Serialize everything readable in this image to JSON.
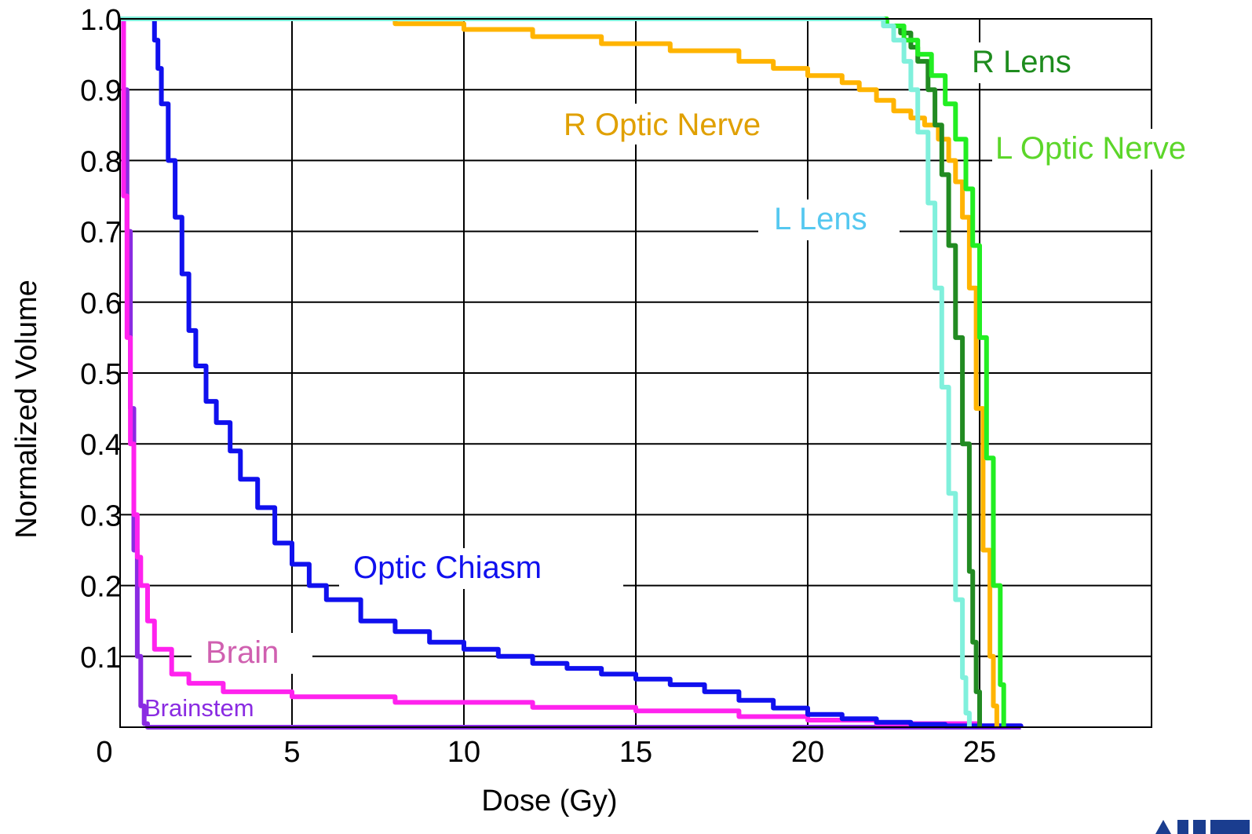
{
  "chart_data": {
    "type": "line",
    "title": "",
    "xlabel": "Dose (Gy)",
    "ylabel": "Normalized Volume",
    "xlim": [
      0,
      30
    ],
    "ylim": [
      0,
      1.0
    ],
    "x_ticks": [
      "0",
      "5",
      "10",
      "15",
      "20",
      "25"
    ],
    "y_ticks": [
      "0.1",
      "0.2",
      "0.3",
      "0.4",
      "0.5",
      "0.6",
      "0.7",
      "0.8",
      "0.9",
      "1.0"
    ],
    "grid": true,
    "legend": "inline labels",
    "series": [
      {
        "name": "Brainstem",
        "color": "#8a2be2",
        "x": [
          0,
          0.1,
          0.2,
          0.3,
          0.4,
          0.5,
          0.6,
          0.7,
          0.8,
          26.2
        ],
        "y": [
          1.0,
          0.9,
          0.7,
          0.45,
          0.25,
          0.1,
          0.03,
          0.005,
          0,
          0
        ]
      },
      {
        "name": "Brain",
        "color": "#ff22ee",
        "x": [
          0,
          0.1,
          0.2,
          0.3,
          0.4,
          0.5,
          0.6,
          0.8,
          1.0,
          1.5,
          2.0,
          3.0,
          5.0,
          8.0,
          12.0,
          15.0,
          18.0,
          20.0,
          22.0,
          25.0,
          26.2
        ],
        "y": [
          1.0,
          0.75,
          0.55,
          0.4,
          0.3,
          0.24,
          0.2,
          0.15,
          0.11,
          0.075,
          0.062,
          0.05,
          0.043,
          0.035,
          0.028,
          0.023,
          0.015,
          0.01,
          0.005,
          0.002,
          0.0
        ]
      },
      {
        "name": "Optic Chiasm",
        "color": "#1010ee",
        "x": [
          0,
          0.7,
          0.9,
          1.0,
          1.1,
          1.2,
          1.4,
          1.6,
          1.8,
          2.0,
          2.2,
          2.5,
          2.8,
          3.2,
          3.5,
          4.0,
          4.5,
          5.0,
          5.5,
          6.0,
          7.0,
          8.0,
          9.0,
          10.0,
          11.0,
          12.0,
          13.0,
          14.0,
          15.0,
          16.0,
          17.0,
          18.0,
          19.0,
          20.0,
          21.0,
          22.0,
          23.0,
          24.0,
          26.2
        ],
        "y": [
          1.0,
          1.0,
          1.0,
          0.97,
          0.93,
          0.88,
          0.8,
          0.72,
          0.64,
          0.56,
          0.51,
          0.46,
          0.43,
          0.39,
          0.35,
          0.31,
          0.26,
          0.23,
          0.2,
          0.18,
          0.15,
          0.135,
          0.12,
          0.11,
          0.1,
          0.09,
          0.083,
          0.075,
          0.068,
          0.06,
          0.05,
          0.038,
          0.027,
          0.018,
          0.012,
          0.007,
          0.004,
          0.002,
          0.0
        ]
      },
      {
        "name": "R Optic Nerve",
        "color": "#ffb400",
        "x": [
          0,
          6.0,
          8.0,
          10.0,
          12.0,
          14.0,
          16.0,
          18.0,
          19.0,
          20.0,
          21.0,
          21.5,
          22.0,
          22.5,
          23.0,
          23.4,
          23.8,
          24.1,
          24.3,
          24.5,
          24.7,
          24.9,
          25.1,
          25.3,
          25.4,
          25.5
        ],
        "y": [
          1.0,
          1.0,
          0.993,
          0.985,
          0.975,
          0.965,
          0.955,
          0.94,
          0.93,
          0.92,
          0.91,
          0.9,
          0.885,
          0.87,
          0.86,
          0.85,
          0.83,
          0.8,
          0.77,
          0.72,
          0.62,
          0.45,
          0.25,
          0.1,
          0.03,
          0.0
        ]
      },
      {
        "name": "R Lens",
        "color": "#228b22",
        "x": [
          0,
          21.8,
          22.3,
          22.7,
          23.0,
          23.2,
          23.5,
          23.7,
          23.9,
          24.1,
          24.3,
          24.5,
          24.7,
          24.8,
          24.9,
          25.0
        ],
        "y": [
          1.0,
          1.0,
          0.99,
          0.98,
          0.96,
          0.94,
          0.9,
          0.85,
          0.78,
          0.68,
          0.55,
          0.4,
          0.22,
          0.12,
          0.05,
          0.0
        ]
      },
      {
        "name": "L Optic Nerve",
        "color": "#22ee22",
        "x": [
          0,
          21.8,
          22.3,
          22.8,
          23.2,
          23.6,
          24.0,
          24.3,
          24.6,
          24.8,
          25.0,
          25.2,
          25.4,
          25.6,
          25.7
        ],
        "y": [
          1.0,
          1.0,
          0.99,
          0.97,
          0.95,
          0.92,
          0.88,
          0.83,
          0.76,
          0.68,
          0.55,
          0.38,
          0.2,
          0.06,
          0.0
        ]
      },
      {
        "name": "L Lens",
        "color": "#80f0dc",
        "x": [
          0,
          21.8,
          22.2,
          22.5,
          22.8,
          23.0,
          23.2,
          23.5,
          23.7,
          23.9,
          24.1,
          24.3,
          24.5,
          24.6,
          24.7
        ],
        "y": [
          1.0,
          1.0,
          0.99,
          0.97,
          0.94,
          0.9,
          0.84,
          0.74,
          0.62,
          0.48,
          0.33,
          0.18,
          0.07,
          0.02,
          0.0
        ]
      }
    ]
  },
  "labels": {
    "r_optic_nerve": "R Optic Nerve",
    "r_lens": "R Lens",
    "l_optic_nerve": "L Optic Nerve",
    "l_lens": "L Lens",
    "optic_chiasm": "Optic Chiasm",
    "brain": "Brain",
    "brainstem": "Brainstem"
  },
  "colors": {
    "r_optic_nerve_label": "#e0a000",
    "r_lens_label": "#1e8c1e",
    "l_optic_nerve_label": "#5cd62a",
    "l_lens_label": "#55c8f0",
    "optic_chiasm_label": "#1010ee",
    "brain_label": "#d060b0",
    "brainstem_label": "#8a2be2",
    "logo": "#1a3d8f"
  }
}
